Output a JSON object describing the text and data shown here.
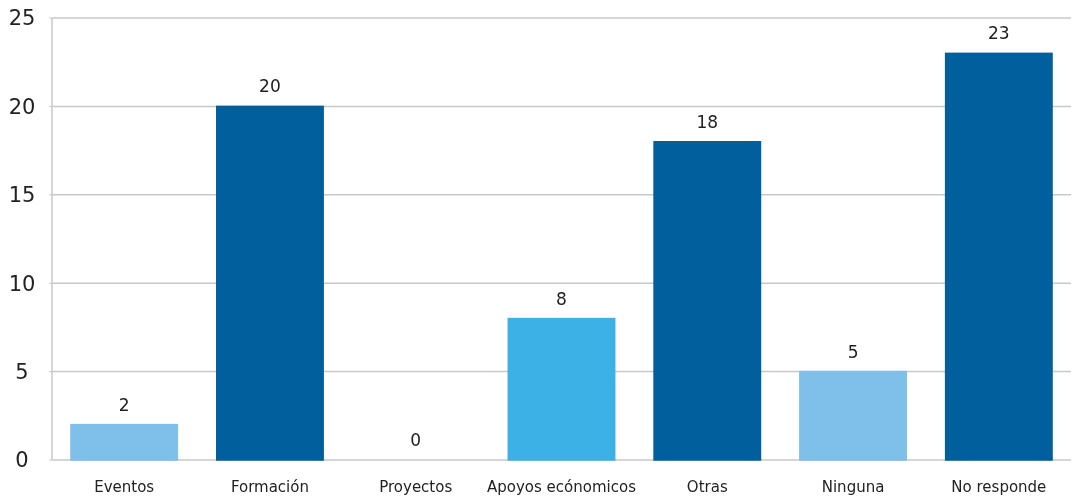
{
  "chart_data": {
    "type": "bar",
    "categories": [
      "Eventos",
      "Formación",
      "Proyectos",
      "Apoyos ecónomicos",
      "Otras",
      "Ninguna",
      "No responde"
    ],
    "values": [
      2,
      20,
      0,
      8,
      18,
      5,
      23
    ],
    "colors": [
      "#7fc0ea",
      "#005f9c",
      "#005f9c",
      "#3cb1e5",
      "#005f9c",
      "#7fc0ea",
      "#005f9c"
    ],
    "ylim": [
      0,
      25
    ],
    "yticks": [
      0,
      5,
      10,
      15,
      20,
      25
    ],
    "grid": "y",
    "data_labels": true
  }
}
